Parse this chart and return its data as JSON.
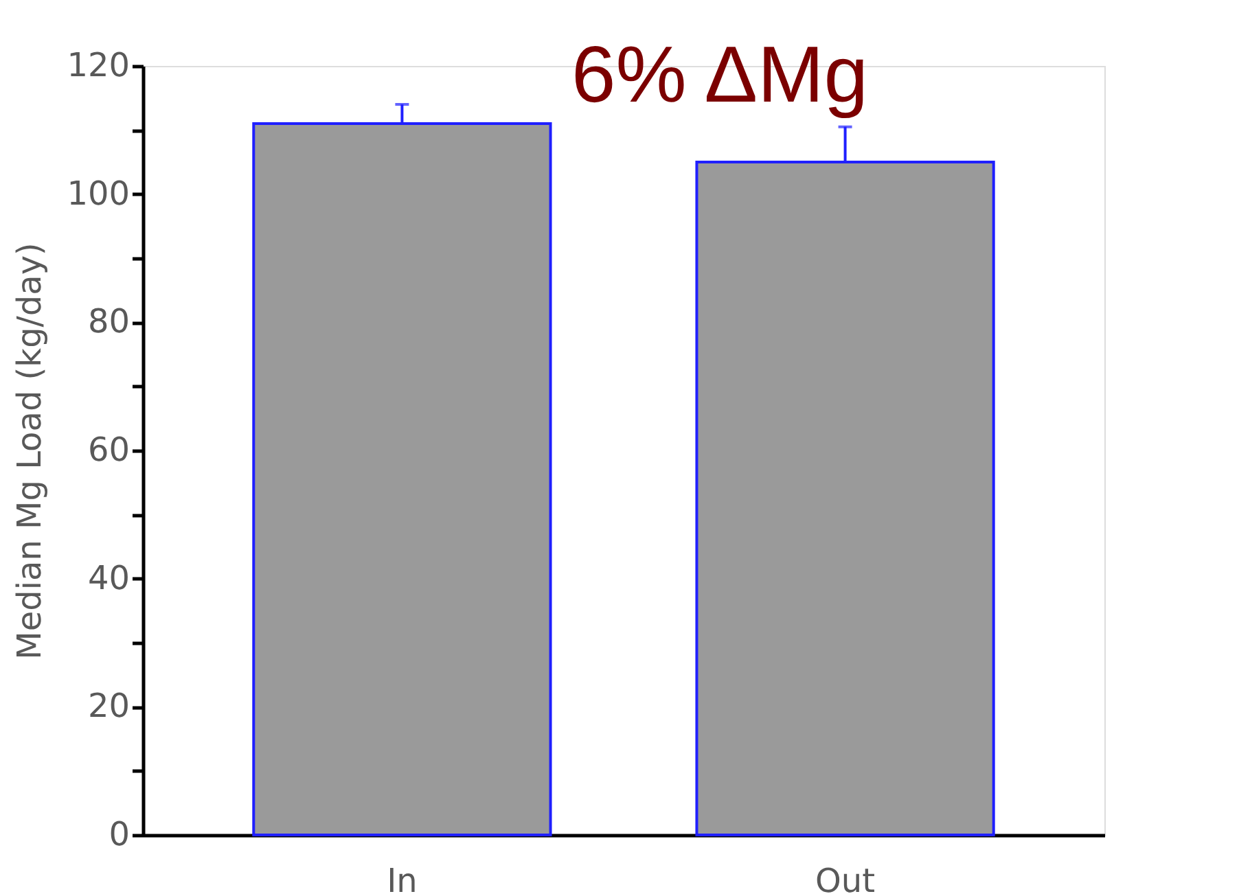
{
  "chart_data": {
    "type": "bar",
    "ylabel": "Median Mg Load (kg/day)",
    "categories": [
      "In",
      "Out"
    ],
    "values": [
      111,
      105
    ],
    "errors": [
      [
        111,
        114
      ],
      [
        105,
        110.5
      ]
    ],
    "color": "#9a9a9a",
    "ylim": [
      0,
      120
    ],
    "yticks": [
      0,
      {
        "value": 10,
        "label": null
      },
      20,
      {
        "value": 30,
        "label": null
      },
      40,
      {
        "value": 50,
        "label": null
      },
      60,
      {
        "value": 70,
        "label": null
      },
      80,
      {
        "value": 90,
        "label": null
      },
      100,
      {
        "value": 110,
        "label": null
      },
      120
    ],
    "annotations": [
      "6% ΔMg"
    ],
    "grid": false
  }
}
